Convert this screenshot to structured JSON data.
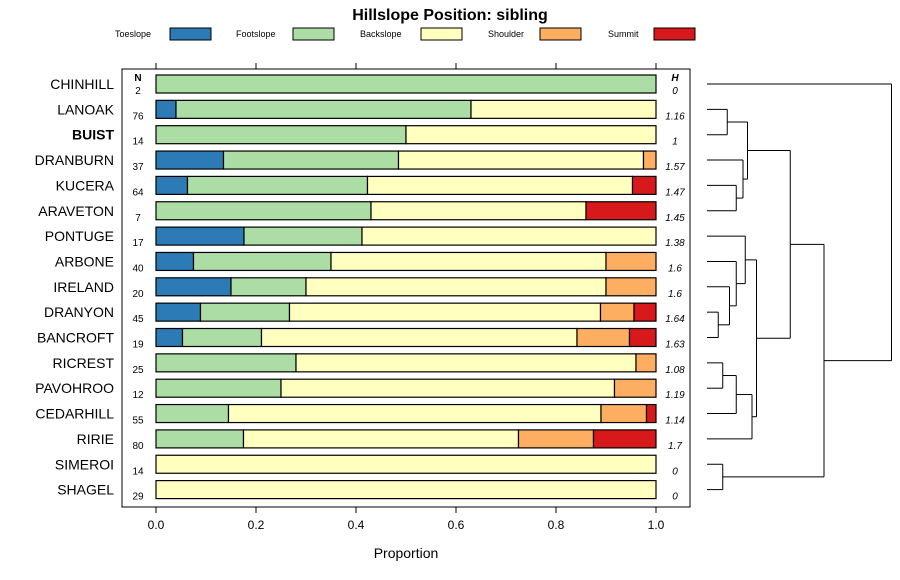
{
  "chart_data": {
    "type": "stacked-bar-horizontal",
    "title": "Hillslope Position: sibling",
    "xlabel": "Proportion",
    "xlim": [
      0,
      1
    ],
    "xticks": [
      "0.0",
      "0.2",
      "0.4",
      "0.6",
      "0.8",
      "1.0"
    ],
    "n_header": "N",
    "h_header": "H",
    "legend": [
      {
        "name": "Toeslope",
        "color": "#2c7bb6"
      },
      {
        "name": "Footslope",
        "color": "#abdda4"
      },
      {
        "name": "Backslope",
        "color": "#ffffbf"
      },
      {
        "name": "Shoulder",
        "color": "#fdae61"
      },
      {
        "name": "Summit",
        "color": "#d7191c"
      }
    ],
    "series_order": [
      "Toeslope",
      "Footslope",
      "Backslope",
      "Shoulder",
      "Summit"
    ],
    "rows": [
      {
        "name": "CHINHILL",
        "bold": false,
        "n": "2",
        "h": "0",
        "values": [
          0,
          1,
          0,
          0,
          0
        ]
      },
      {
        "name": "LANOAK",
        "bold": false,
        "n": "76",
        "h": "1.16",
        "values": [
          0.04,
          0.59,
          0.37,
          0,
          0
        ]
      },
      {
        "name": "BUIST",
        "bold": true,
        "n": "14",
        "h": "1",
        "values": [
          0,
          0.5,
          0.5,
          0,
          0
        ]
      },
      {
        "name": "DRANBURN",
        "bold": false,
        "n": "37",
        "h": "1.57",
        "values": [
          0.135,
          0.35,
          0.49,
          0.025,
          0
        ]
      },
      {
        "name": "KUCERA",
        "bold": false,
        "n": "64",
        "h": "1.47",
        "values": [
          0.063,
          0.36,
          0.53,
          0,
          0.047
        ]
      },
      {
        "name": "ARAVETON",
        "bold": false,
        "n": "7",
        "h": "1.45",
        "values": [
          0,
          0.43,
          0.43,
          0,
          0.14
        ]
      },
      {
        "name": "PONTUGE",
        "bold": false,
        "n": "17",
        "h": "1.38",
        "values": [
          0.176,
          0.236,
          0.588,
          0,
          0
        ]
      },
      {
        "name": "ARBONE",
        "bold": false,
        "n": "40",
        "h": "1.6",
        "values": [
          0.075,
          0.275,
          0.55,
          0.1,
          0
        ]
      },
      {
        "name": "IRELAND",
        "bold": false,
        "n": "20",
        "h": "1.6",
        "values": [
          0.15,
          0.15,
          0.6,
          0.1,
          0
        ]
      },
      {
        "name": "DRANYON",
        "bold": false,
        "n": "45",
        "h": "1.64",
        "values": [
          0.089,
          0.178,
          0.622,
          0.067,
          0.044
        ]
      },
      {
        "name": "BANCROFT",
        "bold": false,
        "n": "19",
        "h": "1.63",
        "values": [
          0.053,
          0.158,
          0.631,
          0.105,
          0.053
        ]
      },
      {
        "name": "RICREST",
        "bold": false,
        "n": "25",
        "h": "1.08",
        "values": [
          0,
          0.28,
          0.68,
          0.04,
          0
        ]
      },
      {
        "name": "PAVOHROO",
        "bold": false,
        "n": "12",
        "h": "1.19",
        "values": [
          0,
          0.25,
          0.667,
          0.083,
          0
        ]
      },
      {
        "name": "CEDARHILL",
        "bold": false,
        "n": "55",
        "h": "1.14",
        "values": [
          0,
          0.145,
          0.745,
          0.091,
          0.019
        ]
      },
      {
        "name": "RIRIE",
        "bold": false,
        "n": "80",
        "h": "1.7",
        "values": [
          0,
          0.175,
          0.55,
          0.15,
          0.125
        ]
      },
      {
        "name": "SIMEROI",
        "bold": false,
        "n": "14",
        "h": "0",
        "values": [
          0,
          0,
          1,
          0,
          0
        ]
      },
      {
        "name": "SHAGEL",
        "bold": false,
        "n": "29",
        "h": "0",
        "values": [
          0,
          0,
          1,
          0,
          0
        ]
      }
    ],
    "dendrogram": {
      "type": "hierarchical-clustering",
      "merges": [
        {
          "id": "m1",
          "left": "LANOAK",
          "right": "BUIST",
          "height": 0.09
        },
        {
          "id": "m2",
          "left": "KUCERA",
          "right": "ARAVETON",
          "height": 0.13
        },
        {
          "id": "m3",
          "left": "DRANBURN",
          "right": "m2",
          "height": 0.16
        },
        {
          "id": "m4",
          "left": "m1",
          "right": "m3",
          "height": 0.18
        },
        {
          "id": "m5",
          "left": "DRANYON",
          "right": "BANCROFT",
          "height": 0.05
        },
        {
          "id": "m6",
          "left": "IRELAND",
          "right": "m5",
          "height": 0.1
        },
        {
          "id": "m7",
          "left": "ARBONE",
          "right": "m6",
          "height": 0.13
        },
        {
          "id": "m8",
          "left": "PONTUGE",
          "right": "m7",
          "height": 0.17
        },
        {
          "id": "m9",
          "left": "RICREST",
          "right": "PAVOHROO",
          "height": 0.07
        },
        {
          "id": "m10",
          "left": "m9",
          "right": "CEDARHILL",
          "height": 0.13
        },
        {
          "id": "m11",
          "left": "m10",
          "right": "RIRIE",
          "height": 0.2
        },
        {
          "id": "m12",
          "left": "m8",
          "right": "m11",
          "height": 0.22
        },
        {
          "id": "m13",
          "left": "m4",
          "right": "m12",
          "height": 0.37
        },
        {
          "id": "m14",
          "left": "SIMEROI",
          "right": "SHAGEL",
          "height": 0.07
        },
        {
          "id": "m15",
          "left": "m13",
          "right": "m14",
          "height": 0.52
        },
        {
          "id": "m16",
          "left": "CHINHILL",
          "right": "m15",
          "height": 0.82
        }
      ]
    }
  }
}
